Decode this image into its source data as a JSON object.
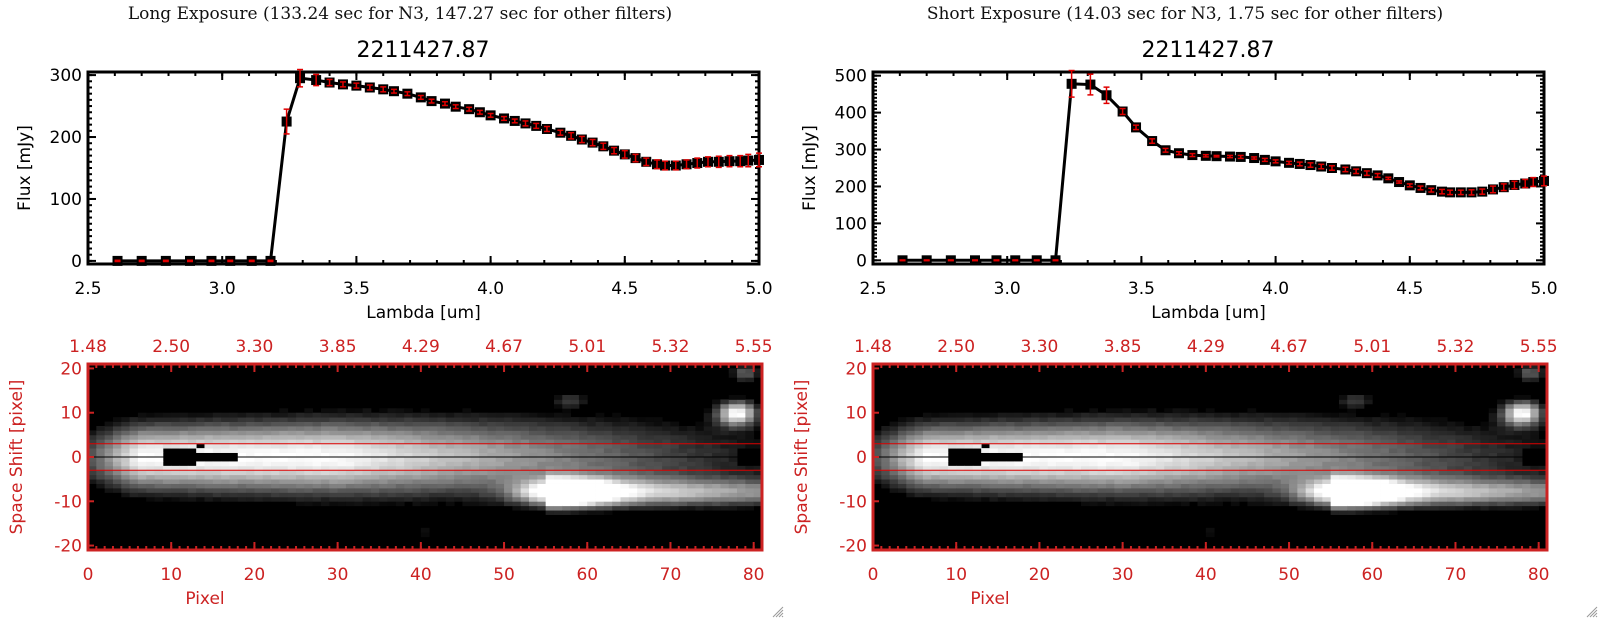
{
  "colors": {
    "axis": "#000000",
    "errorbar": "#e00000",
    "image_axis": "#cc2222",
    "aperture_line": "#dd0000",
    "center_line": "#000000",
    "background": "#ffffff"
  },
  "chart_data": [
    {
      "id": "long-spectrum",
      "type": "line",
      "panel_title": "Long Exposure (133.24 sec for N3, 147.27 sec for other filters)",
      "title": "2211427.87",
      "xlabel": "Lambda [um]",
      "ylabel": "Flux [mJy]",
      "xlim": [
        2.5,
        5.0
      ],
      "ylim": [
        -5,
        305
      ],
      "xticks": [
        "2.5",
        "3.0",
        "3.5",
        "4.0",
        "4.5",
        "5.0"
      ],
      "xtick_values": [
        2.5,
        3.0,
        3.5,
        4.0,
        4.5,
        5.0
      ],
      "yticks": [
        "0",
        "100",
        "200",
        "300"
      ],
      "ytick_values": [
        0,
        100,
        200,
        300
      ],
      "grid": false,
      "series": [
        {
          "name": "flux",
          "x": [
            2.61,
            2.7,
            2.79,
            2.88,
            2.96,
            3.03,
            3.11,
            3.18,
            3.24,
            3.29,
            3.35,
            3.4,
            3.45,
            3.5,
            3.55,
            3.6,
            3.64,
            3.69,
            3.74,
            3.78,
            3.83,
            3.87,
            3.92,
            3.96,
            4.0,
            4.05,
            4.09,
            4.13,
            4.17,
            4.21,
            4.26,
            4.3,
            4.34,
            4.38,
            4.42,
            4.46,
            4.5,
            4.54,
            4.58,
            4.62,
            4.65,
            4.69,
            4.73,
            4.77,
            4.81,
            4.85,
            4.89,
            4.93,
            4.96,
            5.0
          ],
          "y": [
            0,
            0,
            0,
            0,
            0,
            0,
            0,
            0,
            225,
            295,
            292,
            288,
            285,
            283,
            280,
            277,
            274,
            270,
            264,
            258,
            254,
            249,
            245,
            240,
            235,
            230,
            226,
            222,
            218,
            213,
            207,
            202,
            196,
            191,
            185,
            178,
            172,
            166,
            160,
            156,
            154,
            154,
            156,
            158,
            160,
            160,
            161,
            161,
            162,
            163
          ],
          "yerr": [
            1,
            1,
            1,
            1,
            1,
            1,
            1,
            1,
            20,
            14,
            9,
            5,
            4,
            4,
            4,
            4,
            3,
            3,
            3,
            3,
            3,
            3,
            3,
            3,
            3,
            3,
            3,
            4,
            4,
            4,
            4,
            5,
            5,
            5,
            5,
            5,
            6,
            6,
            6,
            7,
            7,
            7,
            7,
            8,
            8,
            9,
            9,
            9,
            10,
            11
          ]
        }
      ]
    },
    {
      "id": "short-spectrum",
      "type": "line",
      "panel_title": "Short Exposure (14.03 sec for N3, 1.75 sec for other filters)",
      "title": "2211427.87",
      "xlabel": "Lambda [um]",
      "ylabel": "Flux [mJy]",
      "xlim": [
        2.5,
        5.0
      ],
      "ylim": [
        -10,
        510
      ],
      "xticks": [
        "2.5",
        "3.0",
        "3.5",
        "4.0",
        "4.5",
        "5.0"
      ],
      "xtick_values": [
        2.5,
        3.0,
        3.5,
        4.0,
        4.5,
        5.0
      ],
      "yticks": [
        "0",
        "100",
        "200",
        "300",
        "400",
        "500"
      ],
      "ytick_values": [
        0,
        100,
        200,
        300,
        400,
        500
      ],
      "grid": false,
      "series": [
        {
          "name": "flux",
          "x": [
            2.61,
            2.7,
            2.79,
            2.88,
            2.96,
            3.03,
            3.11,
            3.18,
            3.24,
            3.31,
            3.37,
            3.43,
            3.48,
            3.54,
            3.59,
            3.64,
            3.69,
            3.74,
            3.78,
            3.83,
            3.87,
            3.92,
            3.96,
            4.0,
            4.05,
            4.09,
            4.13,
            4.17,
            4.21,
            4.26,
            4.3,
            4.34,
            4.38,
            4.42,
            4.46,
            4.5,
            4.54,
            4.58,
            4.62,
            4.65,
            4.69,
            4.73,
            4.77,
            4.81,
            4.85,
            4.89,
            4.93,
            4.96,
            5.0
          ],
          "y": [
            0,
            0,
            0,
            0,
            0,
            0,
            0,
            0,
            478,
            476,
            447,
            403,
            360,
            323,
            298,
            290,
            285,
            283,
            282,
            281,
            280,
            277,
            272,
            268,
            264,
            261,
            258,
            254,
            250,
            246,
            241,
            236,
            230,
            222,
            212,
            203,
            196,
            190,
            186,
            184,
            184,
            184,
            186,
            192,
            198,
            204,
            208,
            212,
            215
          ],
          "yerr": [
            1,
            1,
            1,
            1,
            1,
            1,
            1,
            1,
            36,
            28,
            22,
            8,
            6,
            6,
            5,
            4,
            4,
            3,
            2,
            3,
            4,
            3,
            4,
            4,
            4,
            5,
            6,
            6,
            6,
            6,
            6,
            6,
            5,
            3,
            3,
            4,
            5,
            5,
            6,
            6,
            6,
            7,
            7,
            9,
            9,
            10,
            11,
            12,
            13
          ]
        }
      ]
    },
    {
      "id": "long-image",
      "type": "heatmap",
      "xlabel": "Pixel",
      "ylabel": "Space Shift [pixel]",
      "xlim": [
        0,
        81
      ],
      "ylim": [
        -21,
        21
      ],
      "xticks": [
        "0",
        "10",
        "20",
        "30",
        "40",
        "50",
        "60",
        "70",
        "80"
      ],
      "xtick_values": [
        0,
        10,
        20,
        30,
        40,
        50,
        60,
        70,
        80
      ],
      "yticks": [
        "-20",
        "-10",
        "0",
        "10",
        "20"
      ],
      "ytick_values": [
        -20,
        -10,
        0,
        10,
        20
      ],
      "top_ticks": [
        "1.48",
        "2.50",
        "3.30",
        "3.85",
        "4.29",
        "4.67",
        "5.01",
        "5.32",
        "5.55"
      ],
      "aperture": [
        -3,
        3
      ],
      "center": 0,
      "colormap": "grayscale"
    },
    {
      "id": "short-image",
      "type": "heatmap",
      "xlabel": "Pixel",
      "ylabel": "Space Shift [pixel]",
      "xlim": [
        0,
        81
      ],
      "ylim": [
        -21,
        21
      ],
      "xticks": [
        "0",
        "10",
        "20",
        "30",
        "40",
        "50",
        "60",
        "70",
        "80"
      ],
      "xtick_values": [
        0,
        10,
        20,
        30,
        40,
        50,
        60,
        70,
        80
      ],
      "yticks": [
        "-20",
        "-10",
        "0",
        "10",
        "20"
      ],
      "ytick_values": [
        -20,
        -10,
        0,
        10,
        20
      ],
      "top_ticks": [
        "1.48",
        "2.50",
        "3.30",
        "3.85",
        "4.29",
        "4.67",
        "5.01",
        "5.32",
        "5.55"
      ],
      "aperture": [
        -3,
        3
      ],
      "center": 0,
      "colormap": "grayscale"
    }
  ]
}
